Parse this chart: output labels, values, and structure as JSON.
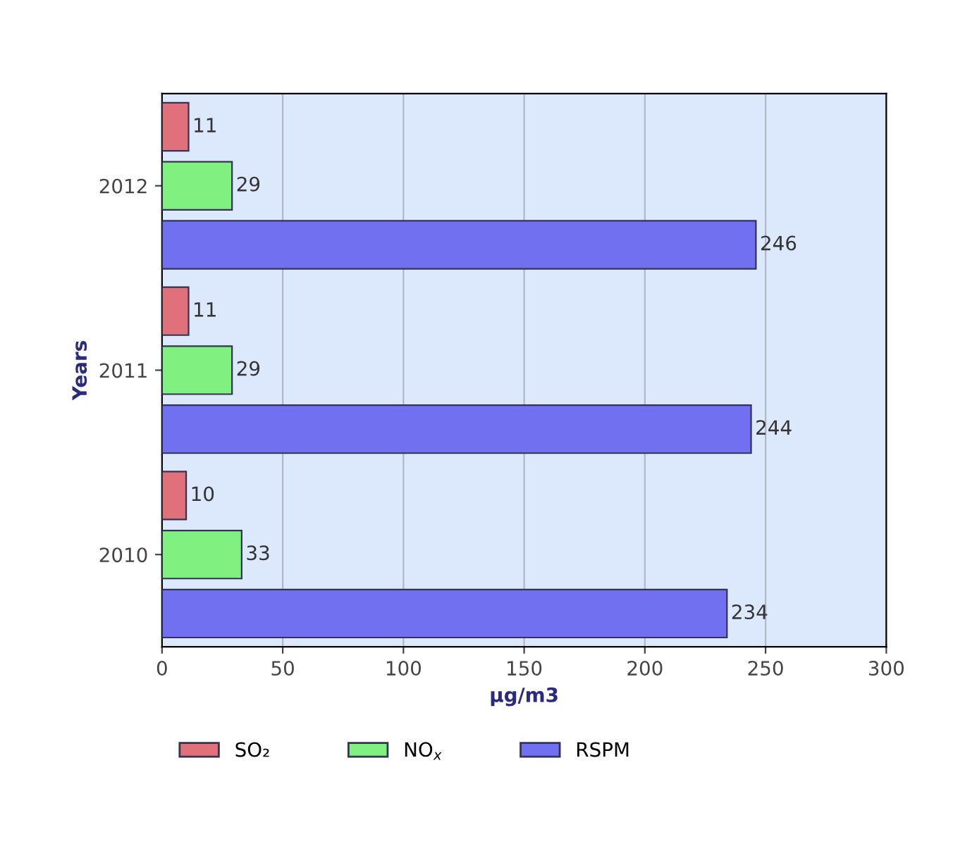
{
  "chart_data": {
    "type": "bar",
    "orientation": "horizontal",
    "xlabel": "µg/m3",
    "ylabel": "Years",
    "categories": [
      "2012",
      "2011",
      "2010"
    ],
    "series": [
      {
        "name": "SO₂",
        "color": "#e0707a",
        "values": [
          11,
          11,
          10
        ]
      },
      {
        "name": "NO$_{x}$",
        "color": "#80f080",
        "values": [
          29,
          29,
          33
        ]
      },
      {
        "name": "RSPM",
        "color": "#7070f0",
        "values": [
          246,
          244,
          234
        ]
      }
    ],
    "xlim": [
      0,
      300
    ],
    "xticks": [
      0,
      50,
      100,
      150,
      200,
      250,
      300
    ],
    "grid": "x",
    "legend": "bottom",
    "data_labels": true
  }
}
